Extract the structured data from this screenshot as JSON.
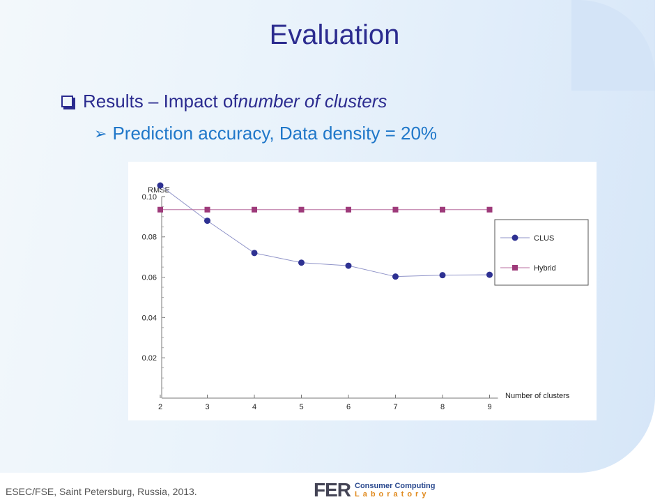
{
  "slide": {
    "title": "Evaluation",
    "bullet1_prefix": "Results – Impact of ",
    "bullet1_emph": "number of clusters",
    "bullet2": "Prediction accuracy, Data density = 20%"
  },
  "footer": {
    "text": "ESEC/FSE, Saint Petersburg, Russia, 2013.",
    "logo_mark": "FER",
    "logo_line1": "Consumer Computing",
    "logo_line2": "Laboratory"
  },
  "colors": {
    "title": "#2b2b8f",
    "subbullet": "#1f77c9",
    "clus": "#2e3192",
    "hybrid": "#9e3a7a"
  },
  "chart_data": {
    "type": "line",
    "ylabel": "RMSE",
    "xlabel": "Number of clusters",
    "x": [
      2,
      3,
      4,
      5,
      6,
      7,
      8,
      9
    ],
    "ylim": [
      0,
      0.11
    ],
    "yticks": [
      "0.02",
      "0.04",
      "0.06",
      "0.08",
      "0.10"
    ],
    "legend_position": "right",
    "series": [
      {
        "name": "CLUS",
        "marker": "circle",
        "color": "#2e3192",
        "values": [
          0.1055,
          0.088,
          0.072,
          0.0672,
          0.0657,
          0.0603,
          0.061,
          0.0612
        ]
      },
      {
        "name": "Hybrid",
        "marker": "square",
        "color": "#9e3a7a",
        "values": [
          0.0935,
          0.0935,
          0.0935,
          0.0935,
          0.0935,
          0.0935,
          0.0935,
          0.0935
        ]
      }
    ]
  }
}
